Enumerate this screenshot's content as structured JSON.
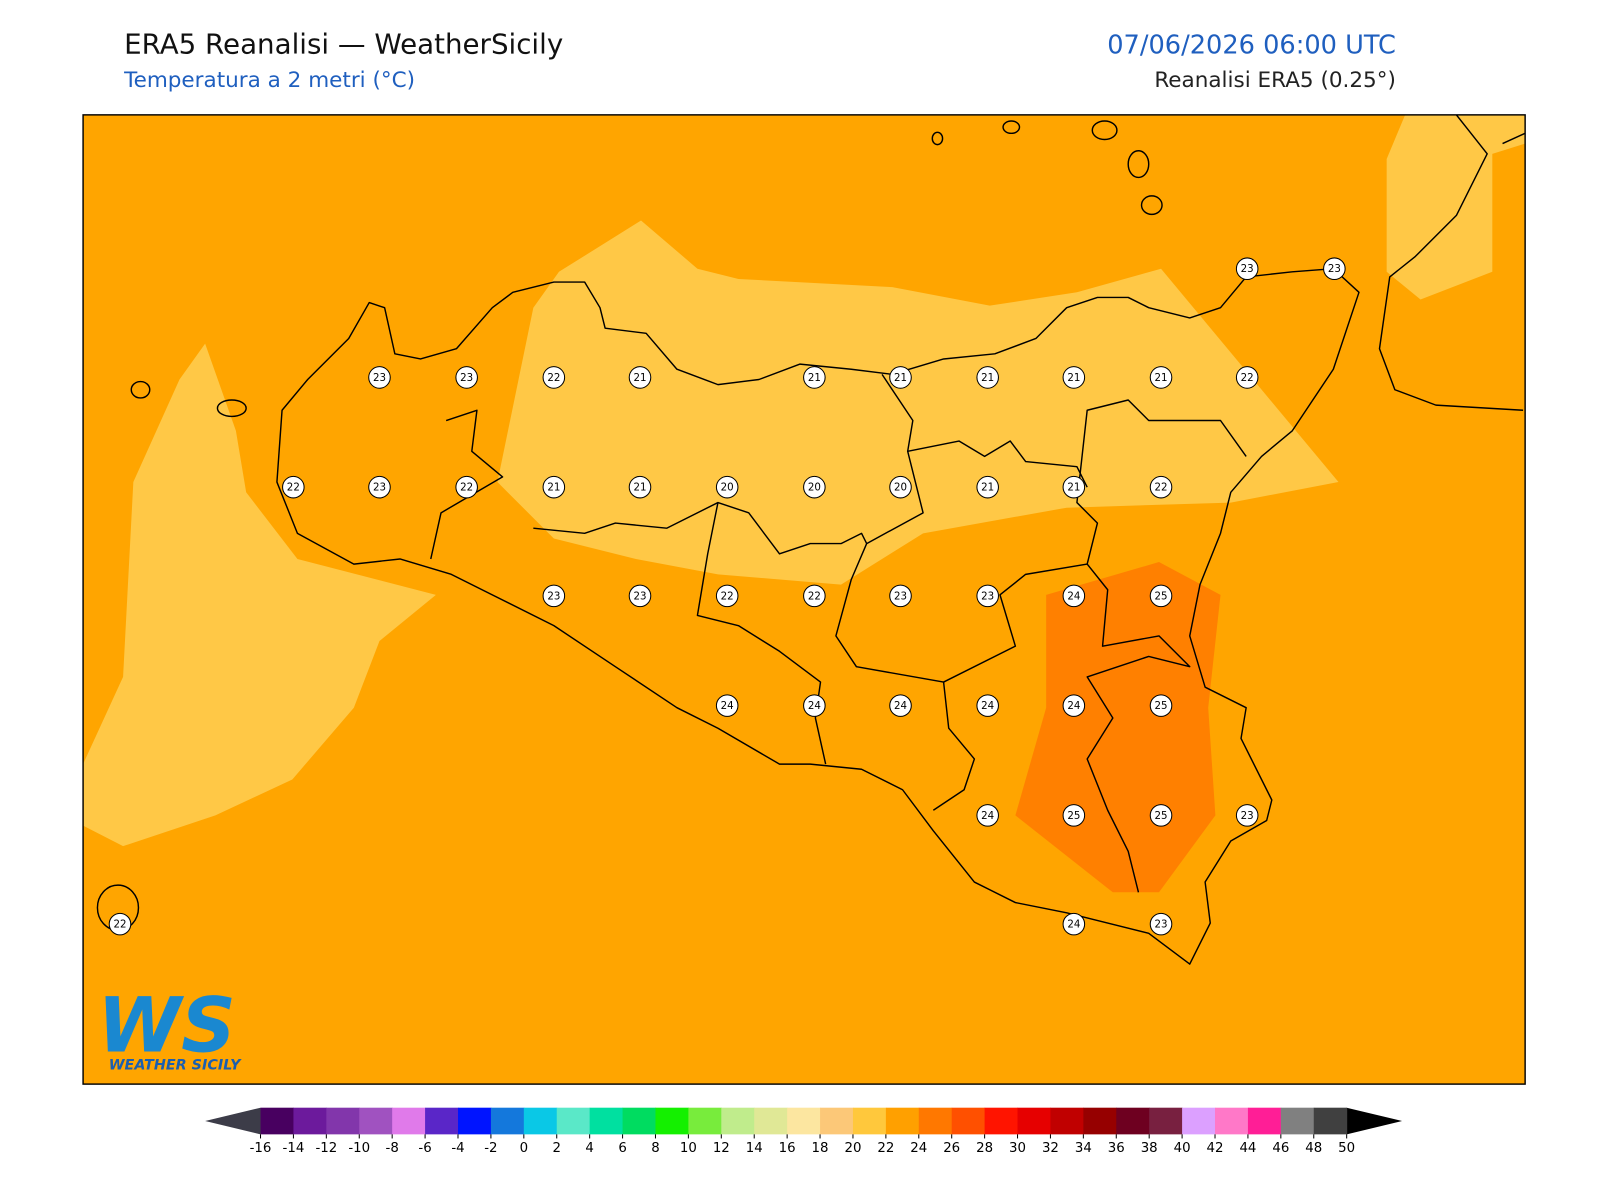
{
  "header": {
    "title": "ERA5 Reanalisi — WeatherSicily",
    "subtitle": "Temperatura a 2 metri (°C)",
    "datetime": "07/06/2026 06:00 UTC",
    "source": "Reanalisi ERA5 (0.25°)"
  },
  "stations": [
    23,
    23,
    23,
    23,
    22,
    21,
    21,
    21,
    21,
    21,
    21,
    22,
    22,
    23,
    22,
    21,
    21,
    20,
    20,
    20,
    21,
    21,
    22,
    23,
    23,
    22,
    22,
    23,
    23,
    24,
    25,
    24,
    24,
    24,
    24,
    24,
    25,
    24,
    25,
    25,
    23,
    22,
    24,
    23
  ],
  "colorbar": {
    "ticks": [
      -16,
      -14,
      -12,
      -10,
      -8,
      -6,
      -4,
      -2,
      0,
      2,
      4,
      6,
      8,
      10,
      12,
      14,
      16,
      18,
      20,
      22,
      24,
      26,
      28,
      30,
      32,
      34,
      36,
      38,
      40,
      42,
      44,
      46,
      48,
      50
    ],
    "colors": [
      "#480060",
      "#6c1a9c",
      "#8236ab",
      "#a052c0",
      "#e07aea",
      "#5a26c8",
      "#0014ff",
      "#1478dc",
      "#0ac8e6",
      "#5ae8c8",
      "#00e0a0",
      "#00dc60",
      "#14f000",
      "#78ec3c",
      "#c0ec8c",
      "#e0e896",
      "#fce6a0",
      "#fcc878",
      "#ffc83c",
      "#ffa000",
      "#ff7800",
      "#ff5000",
      "#ff1400",
      "#e60000",
      "#c00000",
      "#960000",
      "#6e0020",
      "#782040",
      "#dca0ff",
      "#ff78c8",
      "#ff1e96",
      "#808080",
      "#404040"
    ]
  },
  "logo": {
    "text": "WS",
    "subtext": "WEATHER SICILY"
  }
}
